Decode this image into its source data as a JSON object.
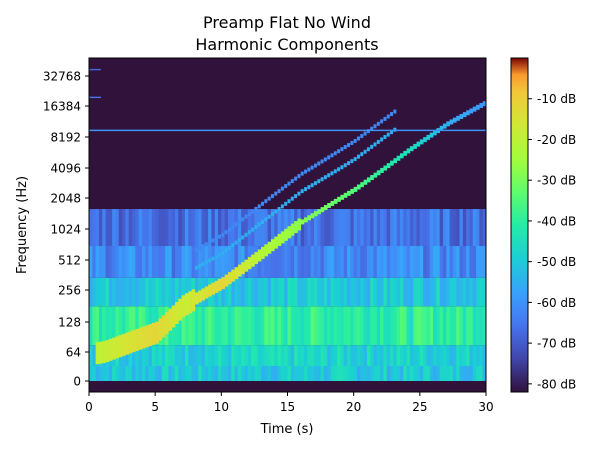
{
  "chart_data": {
    "type": "heatmap",
    "title_line1": "Preamp Flat No Wind",
    "title_line2": "Harmonic Components",
    "xlabel": "Time (s)",
    "ylabel": "Frequency (Hz)",
    "x_ticks": [
      0,
      5,
      10,
      15,
      20,
      25,
      30
    ],
    "xlim": [
      0,
      30
    ],
    "y_scale": "log2 (symlog below 64 Hz)",
    "y_ticks": [
      "0",
      "64",
      "128",
      "256",
      "512",
      "1024",
      "2048",
      "4096",
      "8192",
      "16384",
      "32768"
    ],
    "colorbar": {
      "label_unit": "dB",
      "ticks": [
        -10,
        -20,
        -30,
        -40,
        -50,
        -60,
        -70,
        -80
      ],
      "tick_labels": [
        "-10 dB",
        "-20 dB",
        "-30 dB",
        "-40 dB",
        "-50 dB",
        "-60 dB",
        "-70 dB",
        "-80 dB"
      ],
      "range": [
        -82,
        0
      ],
      "colormap": "turbo"
    },
    "background_db": -80,
    "constant_lines": [
      {
        "name": "hum-line-9500",
        "freq_hz": 9500,
        "db": -60
      },
      {
        "name": "high-line-20000",
        "freq_hz": 20000,
        "db": -65
      },
      {
        "name": "high-line-38000",
        "freq_hz": 38000,
        "db": -68
      }
    ],
    "noise_bands": [
      {
        "name": "band-low",
        "freq_lo_hz": 0,
        "freq_hi_hz": 30,
        "db": -50
      },
      {
        "name": "band-64",
        "freq_lo_hz": 30,
        "freq_hi_hz": 75,
        "db": -48
      },
      {
        "name": "band-128",
        "freq_lo_hz": 75,
        "freq_hi_hz": 180,
        "db": -40
      },
      {
        "name": "band-256",
        "freq_lo_hz": 180,
        "freq_hi_hz": 340,
        "db": -50
      },
      {
        "name": "band-512",
        "freq_lo_hz": 340,
        "freq_hi_hz": 700,
        "db": -62
      },
      {
        "name": "band-1024",
        "freq_lo_hz": 700,
        "freq_hi_hz": 1600,
        "db": -66
      }
    ],
    "sweep": {
      "fundamental": [
        [
          0.5,
          60
        ],
        [
          3,
          80
        ],
        [
          5,
          100
        ],
        [
          7,
          180
        ],
        [
          10,
          300
        ],
        [
          13,
          600
        ],
        [
          16,
          1200
        ],
        [
          20,
          2500
        ],
        [
          24,
          6000
        ],
        [
          27,
          11000
        ],
        [
          30,
          18000
        ]
      ],
      "fundamental_db": [
        -20,
        -15,
        -12,
        -18,
        -12,
        -22,
        -28,
        -35,
        -45,
        -55,
        -60
      ],
      "harmonics": [
        {
          "name": "harmonic-2",
          "multiplier": 2,
          "db": -55
        },
        {
          "name": "harmonic-3",
          "multiplier": 3,
          "db": -62
        }
      ]
    }
  }
}
